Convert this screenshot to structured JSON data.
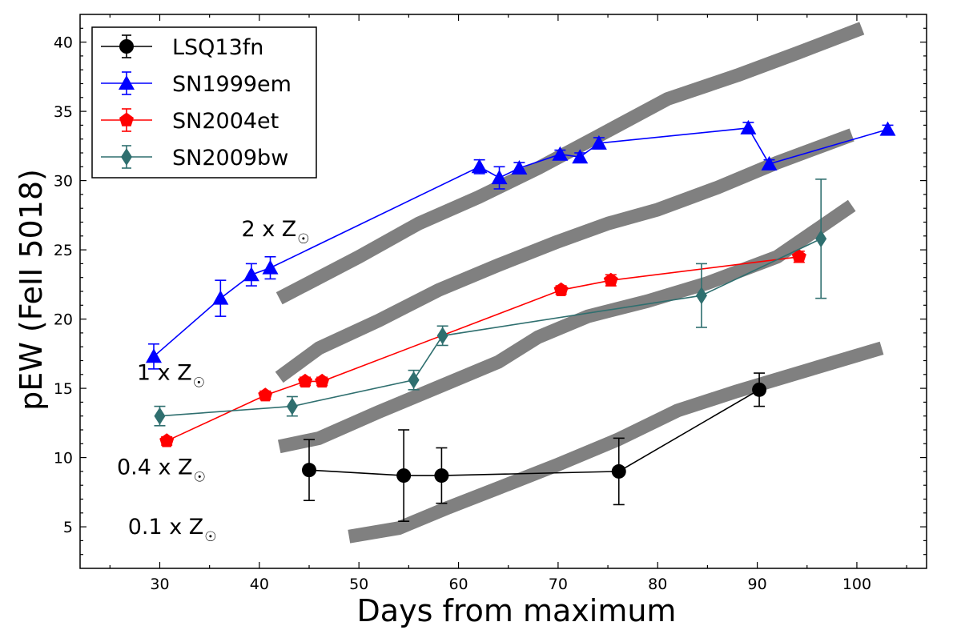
{
  "chart_data": {
    "type": "line",
    "xlabel": "Days from maximum",
    "ylabel": "pEW (FeII 5018)",
    "xlim": [
      22,
      107
    ],
    "ylim": [
      2,
      42
    ],
    "xticks": [
      30,
      40,
      50,
      60,
      70,
      80,
      90,
      100
    ],
    "yticks": [
      5,
      10,
      15,
      20,
      25,
      30,
      35,
      40
    ],
    "legend_position": "top-left",
    "colors": {
      "band": "#808080",
      "lsq": "#000000",
      "sn1999em": "#0000ff",
      "sn2004et": "#ff0000",
      "sn2009bw": "#2f6f6f"
    },
    "series": [
      {
        "name": "LSQ13fn",
        "color": "#000000",
        "marker": "circle",
        "x": [
          45.0,
          54.5,
          58.3,
          76.1,
          90.2
        ],
        "y": [
          9.1,
          8.7,
          8.7,
          9.0,
          14.9
        ],
        "yerr": [
          2.2,
          3.3,
          2.0,
          2.4,
          1.2
        ]
      },
      {
        "name": "SN1999em",
        "color": "#0000ff",
        "marker": "triangle",
        "x": [
          29.4,
          36.1,
          39.2,
          41.1,
          62.1,
          64.1,
          66.1,
          70.2,
          72.2,
          74.1,
          89.1,
          91.2,
          103.1
        ],
        "y": [
          17.3,
          21.5,
          23.2,
          23.7,
          31.0,
          30.2,
          30.9,
          31.9,
          31.7,
          32.7,
          33.8,
          31.2,
          33.7
        ],
        "yerr": [
          0.9,
          1.3,
          0.8,
          0.8,
          0.5,
          0.8,
          0.4,
          0.3,
          0.3,
          0.4,
          0.4,
          0.3,
          0.3
        ]
      },
      {
        "name": "SN2004et",
        "color": "#ff0000",
        "marker": "pentagon",
        "x": [
          30.7,
          40.6,
          44.6,
          46.3,
          70.3,
          75.3,
          94.2
        ],
        "y": [
          11.2,
          14.5,
          15.5,
          15.5,
          22.1,
          22.8,
          24.5
        ],
        "yerr": [
          0.3,
          0.3,
          0.3,
          0.3,
          0.3,
          0.4,
          0.4
        ]
      },
      {
        "name": "SN2009bw",
        "color": "#2f6f6f",
        "marker": "diamond",
        "x": [
          30.0,
          43.3,
          55.5,
          58.4,
          84.4,
          96.4
        ],
        "y": [
          13.0,
          13.7,
          15.6,
          18.8,
          21.7,
          25.8
        ],
        "yerr": [
          0.7,
          0.7,
          0.7,
          0.7,
          2.3,
          4.3
        ]
      }
    ],
    "models": [
      {
        "label": "2 x Z",
        "x": [
          42,
          50,
          56,
          62,
          68,
          74,
          81,
          88,
          94,
          100.5
        ],
        "y": [
          21.5,
          24.5,
          26.9,
          28.8,
          30.9,
          33.2,
          35.9,
          37.6,
          39.2,
          41.0
        ]
      },
      {
        "label": "1 x Z",
        "x": [
          42,
          46,
          52,
          58,
          64,
          70,
          75,
          80,
          86,
          92,
          99.5
        ],
        "y": [
          15.8,
          17.9,
          19.9,
          22.1,
          23.9,
          25.6,
          26.9,
          27.9,
          29.5,
          31.3,
          33.3
        ]
      },
      {
        "label": "0.4 x Z",
        "x": [
          42,
          46,
          52,
          58,
          64,
          68,
          73,
          79,
          85,
          92,
          99.5
        ],
        "y": [
          10.8,
          11.4,
          13.3,
          15.1,
          16.9,
          18.7,
          20.2,
          21.3,
          22.6,
          24.5,
          28.2
        ]
      },
      {
        "label": "0.1 x Z",
        "x": [
          49,
          54,
          59,
          64,
          70,
          76,
          82,
          88,
          95,
          102.5
        ],
        "y": [
          4.3,
          4.9,
          6.4,
          7.8,
          9.5,
          11.3,
          13.4,
          14.8,
          16.3,
          17.9
        ]
      }
    ],
    "annotations": [
      {
        "text": "2 x Z",
        "x": 38.2,
        "y": 26.0
      },
      {
        "text": "1 x Z",
        "x": 27.7,
        "y": 15.6
      },
      {
        "text": "0.4 x Z",
        "x": 25.7,
        "y": 8.8
      },
      {
        "text": "0.1 x Z",
        "x": 26.8,
        "y": 4.5
      }
    ]
  }
}
